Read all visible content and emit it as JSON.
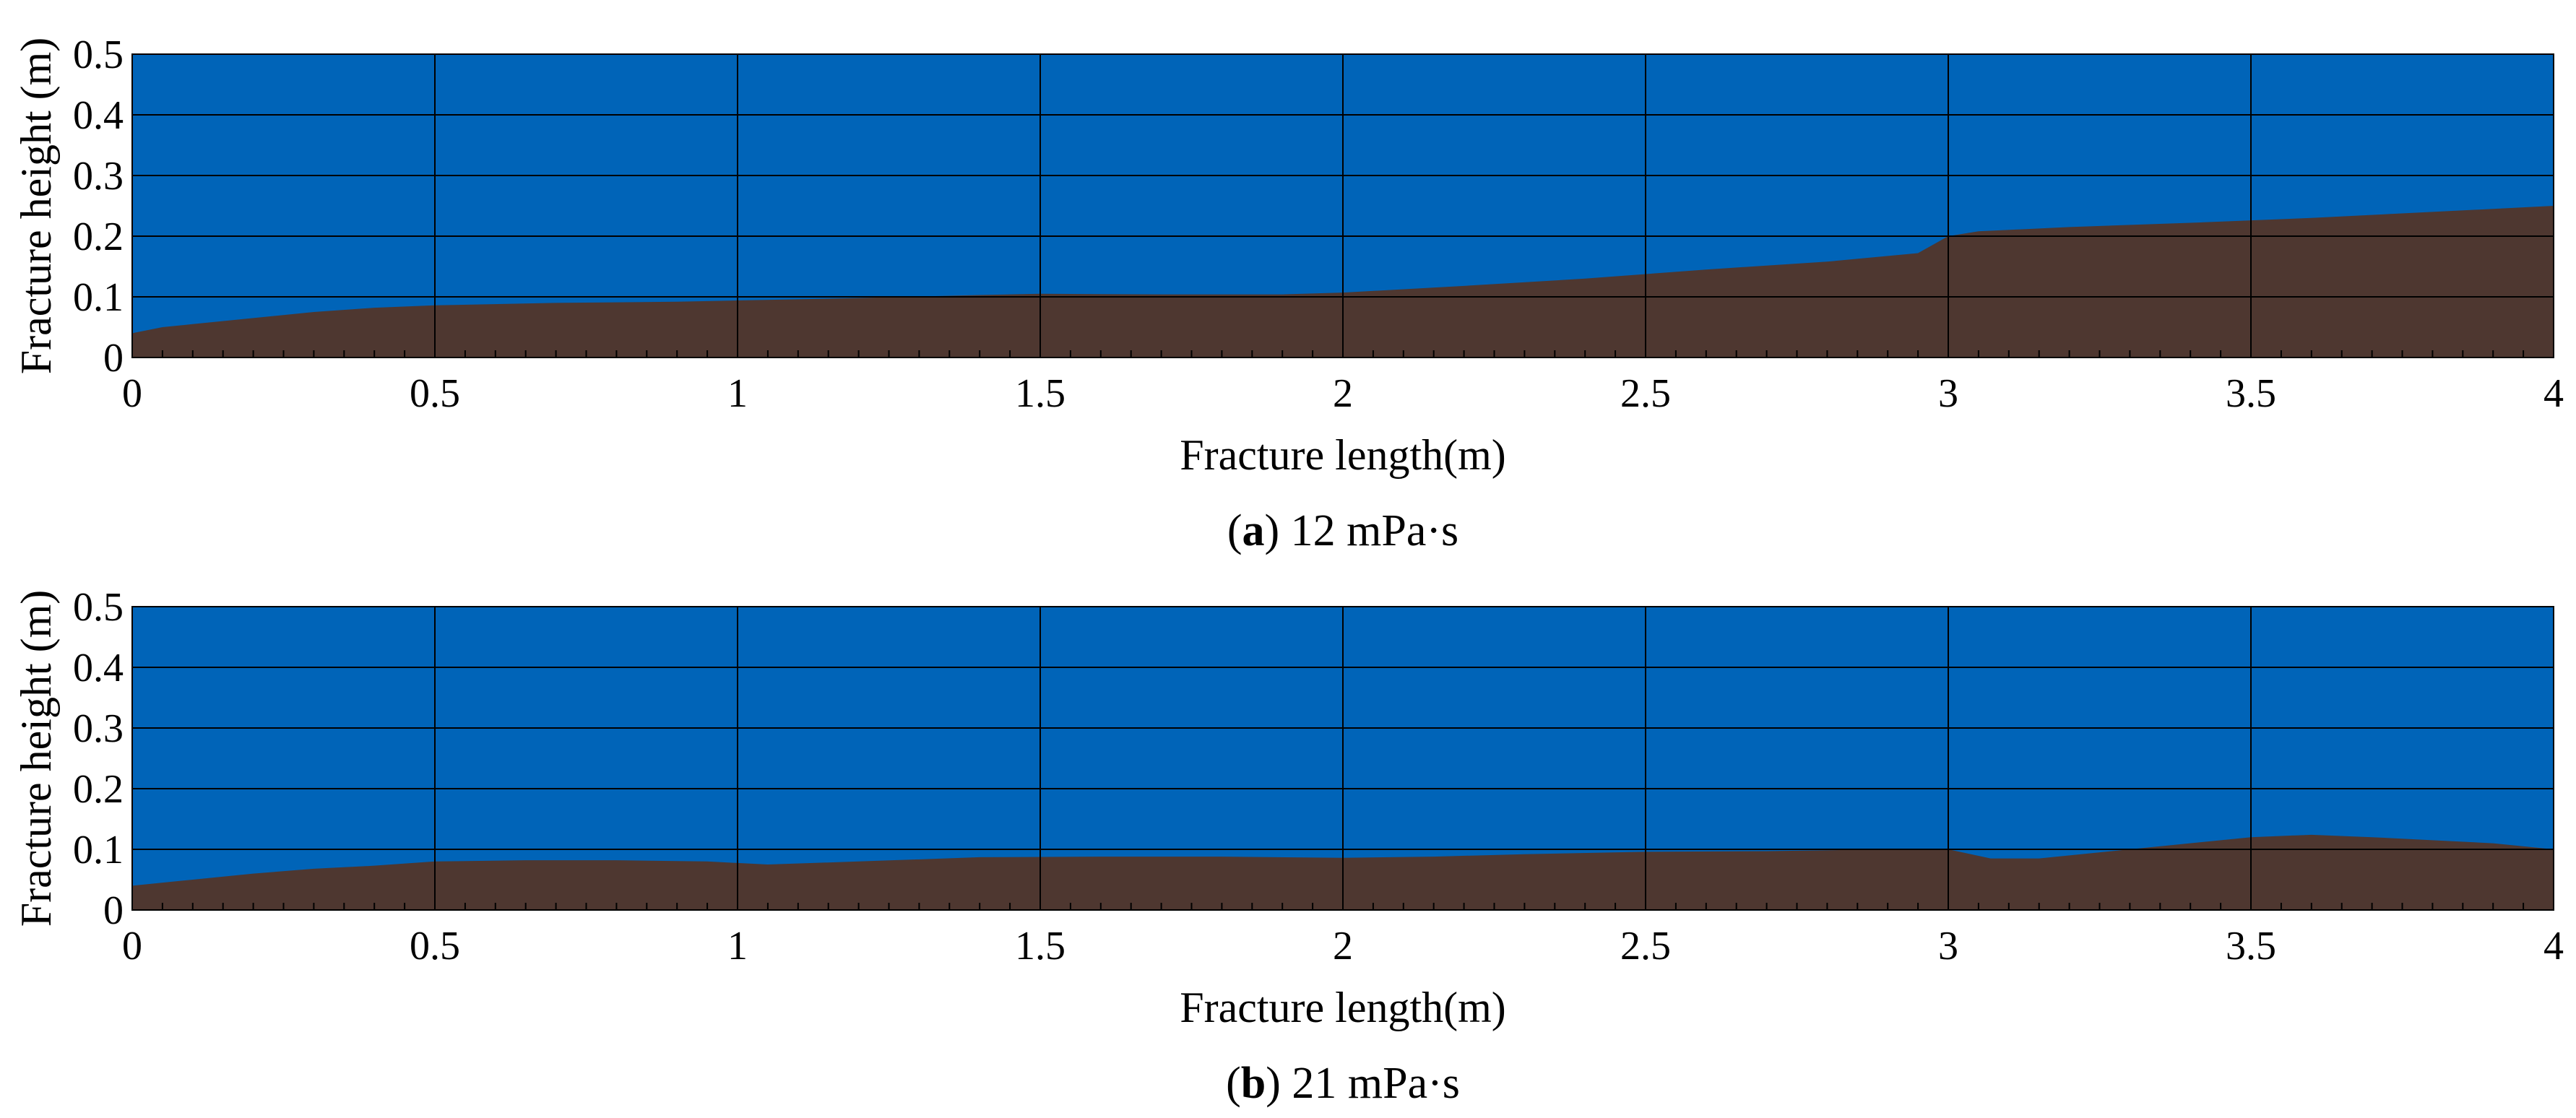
{
  "colors": {
    "fluid": "#0064B8",
    "proppant": "#4E3730",
    "grid": "#000000",
    "text": "#000000"
  },
  "chart_data": [
    {
      "type": "area",
      "panel": "a",
      "caption": {
        "letter": "a",
        "prefix": "(",
        "suffix": ")",
        "text": " 12 mPa·s"
      },
      "xlabel": "Fracture length(m)",
      "ylabel": "Fracture height (m)",
      "xlim": [
        0,
        4
      ],
      "ylim": [
        0,
        0.5
      ],
      "x_ticks": [
        0,
        0.5,
        1,
        1.5,
        2,
        2.5,
        3,
        3.5,
        4
      ],
      "x_tick_labels": [
        "0",
        "0.5",
        "1",
        "1.5",
        "2",
        "2.5",
        "3",
        "3.5",
        "4"
      ],
      "y_ticks": [
        0,
        0.1,
        0.2,
        0.3,
        0.4,
        0.5
      ],
      "y_tick_labels": [
        "0",
        "0.1",
        "0.2",
        "0.3",
        "0.4",
        "0.5"
      ],
      "grid": true,
      "series": [
        {
          "x": [
            0,
            0.05,
            0.1,
            0.2,
            0.3,
            0.4,
            0.5,
            0.7,
            0.9,
            1.0,
            1.2,
            1.4,
            1.5,
            1.7,
            1.9,
            2.0,
            2.2,
            2.4,
            2.6,
            2.8,
            2.95,
            3.0,
            3.05,
            3.2,
            3.4,
            3.6,
            3.8,
            4.0
          ],
          "y": [
            0.04,
            0.05,
            0.055,
            0.065,
            0.075,
            0.082,
            0.086,
            0.09,
            0.092,
            0.094,
            0.098,
            0.103,
            0.105,
            0.104,
            0.104,
            0.107,
            0.118,
            0.13,
            0.145,
            0.158,
            0.172,
            0.2,
            0.208,
            0.215,
            0.222,
            0.23,
            0.24,
            0.25
          ]
        }
      ]
    },
    {
      "type": "area",
      "panel": "b",
      "caption": {
        "letter": "b",
        "prefix": "(",
        "suffix": ")",
        "text": " 21 mPa·s"
      },
      "xlabel": "Fracture length(m)",
      "ylabel": "Fracture height (m)",
      "xlim": [
        0,
        4
      ],
      "ylim": [
        0,
        0.5
      ],
      "x_ticks": [
        0,
        0.5,
        1,
        1.5,
        2,
        2.5,
        3,
        3.5,
        4
      ],
      "x_tick_labels": [
        "0",
        "0.5",
        "1",
        "1.5",
        "2",
        "2.5",
        "3",
        "3.5",
        "4"
      ],
      "y_ticks": [
        0,
        0.1,
        0.2,
        0.3,
        0.4,
        0.5
      ],
      "y_tick_labels": [
        "0",
        "0.1",
        "0.2",
        "0.3",
        "0.4",
        "0.5"
      ],
      "grid": true,
      "series": [
        {
          "x": [
            0,
            0.1,
            0.2,
            0.3,
            0.4,
            0.5,
            0.65,
            0.8,
            0.95,
            1.05,
            1.2,
            1.4,
            1.6,
            1.8,
            2.0,
            2.15,
            2.3,
            2.5,
            2.7,
            2.9,
            3.0,
            3.07,
            3.15,
            3.3,
            3.5,
            3.6,
            3.7,
            3.8,
            3.9,
            4.0
          ],
          "y": [
            0.04,
            0.05,
            0.06,
            0.068,
            0.073,
            0.08,
            0.082,
            0.082,
            0.08,
            0.075,
            0.08,
            0.087,
            0.088,
            0.088,
            0.086,
            0.088,
            0.092,
            0.096,
            0.097,
            0.1,
            0.1,
            0.085,
            0.085,
            0.1,
            0.12,
            0.124,
            0.12,
            0.115,
            0.11,
            0.1
          ]
        }
      ]
    }
  ]
}
